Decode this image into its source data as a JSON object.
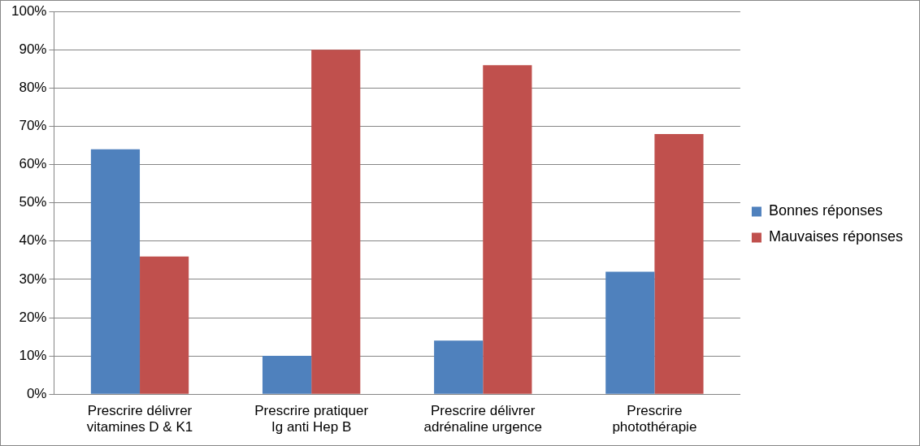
{
  "chart_data": {
    "type": "bar",
    "categories": [
      "Prescrire délivrer vitamines D & K1",
      "Prescrire pratiquer Ig anti Hep B",
      "Prescrire délivrer adrénaline urgence",
      "Prescrire photothérapie"
    ],
    "series": [
      {
        "name": "Bonnes réponses",
        "color": "#4f81bd",
        "values": [
          64,
          10,
          14,
          32
        ]
      },
      {
        "name": "Mauvaises réponses",
        "color": "#c0504d",
        "values": [
          36,
          90,
          86,
          68
        ]
      }
    ],
    "ylim": [
      0,
      100
    ],
    "yticks": [
      {
        "value": 0,
        "label": "0%"
      },
      {
        "value": 10,
        "label": "10%"
      },
      {
        "value": 20,
        "label": "20%"
      },
      {
        "value": 30,
        "label": "30%"
      },
      {
        "value": 40,
        "label": "40%"
      },
      {
        "value": 50,
        "label": "50%"
      },
      {
        "value": 60,
        "label": "60%"
      },
      {
        "value": 70,
        "label": "70%"
      },
      {
        "value": 80,
        "label": "80%"
      },
      {
        "value": 90,
        "label": "90%"
      },
      {
        "value": 100,
        "label": "100%"
      }
    ],
    "grid": "y",
    "legend": "right"
  }
}
